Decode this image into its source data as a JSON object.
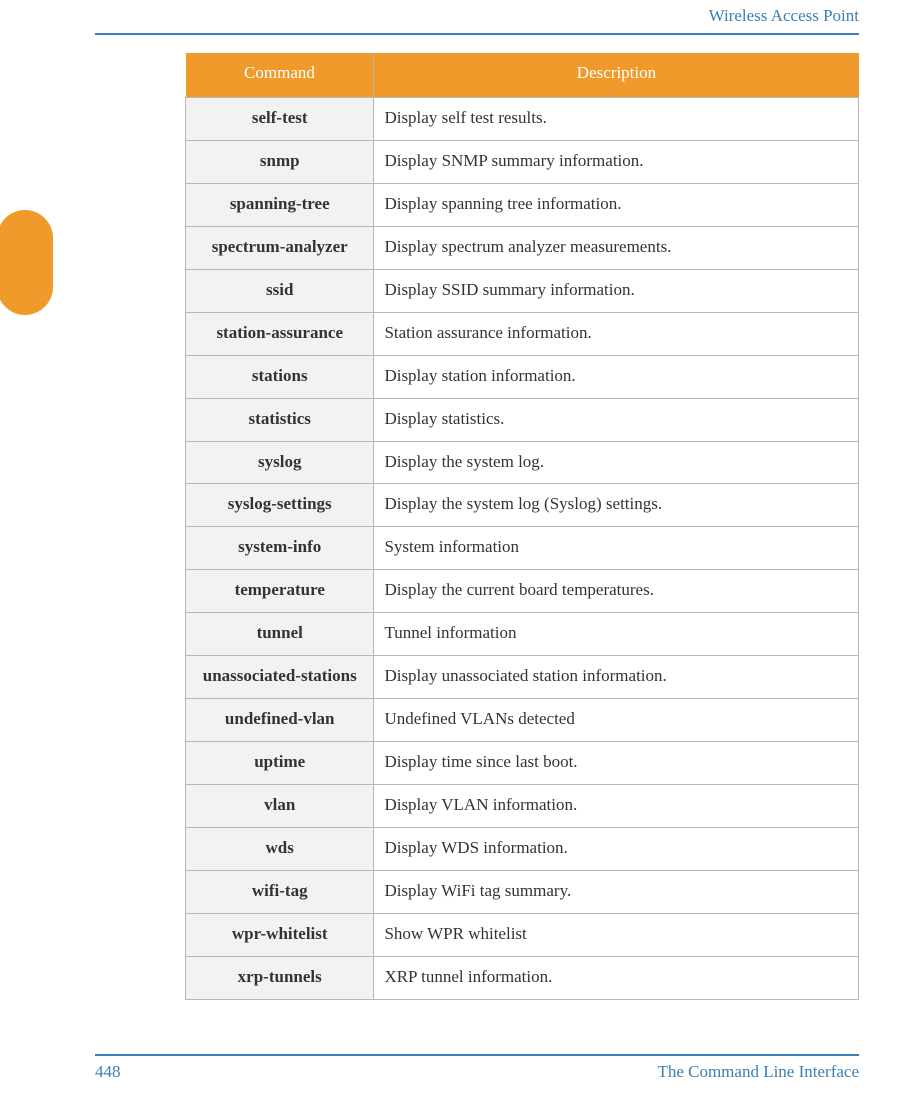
{
  "header": {
    "title": "Wireless Access Point"
  },
  "colors": {
    "accent_blue": "#3a7fb5",
    "accent_orange": "#f09a2b",
    "row_alt_bg": "#f2f2f2",
    "border": "#b7b7b7",
    "page_bg": "#ffffff",
    "header_text": "#ffffff"
  },
  "table": {
    "columns": [
      "Command",
      "Description"
    ],
    "column_widths_pct": [
      28,
      72
    ],
    "header_bg": "#f09a2b",
    "header_fg": "#ffffff",
    "cell_border": "#b7b7b7",
    "cmd_col_bg": "#f2f2f2",
    "font_size_pt": 13,
    "rows": [
      {
        "command": "self-test",
        "description": "Display self test results.",
        "tall": false
      },
      {
        "command": "snmp",
        "description": "Display SNMP summary information.",
        "tall": false
      },
      {
        "command": "spanning-tree",
        "description": "Display spanning tree information.",
        "tall": false
      },
      {
        "command": "spectrum-analyzer",
        "description": "Display spectrum analyzer measurements.",
        "tall": true
      },
      {
        "command": "ssid",
        "description": "Display SSID summary information.",
        "tall": false
      },
      {
        "command": "station-assurance",
        "description": "Station assurance information.",
        "tall": true
      },
      {
        "command": "stations",
        "description": "Display station information.",
        "tall": false
      },
      {
        "command": "statistics",
        "description": "Display statistics.",
        "tall": false
      },
      {
        "command": "syslog",
        "description": "Display the system log.",
        "tall": false
      },
      {
        "command": "syslog-settings",
        "description": "Display the system log (Syslog) settings.",
        "tall": false
      },
      {
        "command": "system-info",
        "description": "System information",
        "tall": false
      },
      {
        "command": "temperature",
        "description": "Display the current board temperatures.",
        "tall": false
      },
      {
        "command": "tunnel",
        "description": "Tunnel information",
        "tall": false
      },
      {
        "command": "unassociated-stations",
        "description": "Display unassociated station information.",
        "tall": true
      },
      {
        "command": "undefined-vlan",
        "description": "Undefined VLANs detected",
        "tall": false
      },
      {
        "command": "uptime",
        "description": "Display time since last boot.",
        "tall": false
      },
      {
        "command": "vlan",
        "description": "Display VLAN information.",
        "tall": false
      },
      {
        "command": "wds",
        "description": "Display WDS information.",
        "tall": false
      },
      {
        "command": "wifi-tag",
        "description": "Display WiFi tag summary.",
        "tall": false
      },
      {
        "command": "wpr-whitelist",
        "description": "Show WPR whitelist",
        "tall": false
      },
      {
        "command": "xrp-tunnels",
        "description": "XRP tunnel information.",
        "tall": false
      }
    ]
  },
  "footer": {
    "page_number": "448",
    "section": "The Command Line Interface"
  }
}
